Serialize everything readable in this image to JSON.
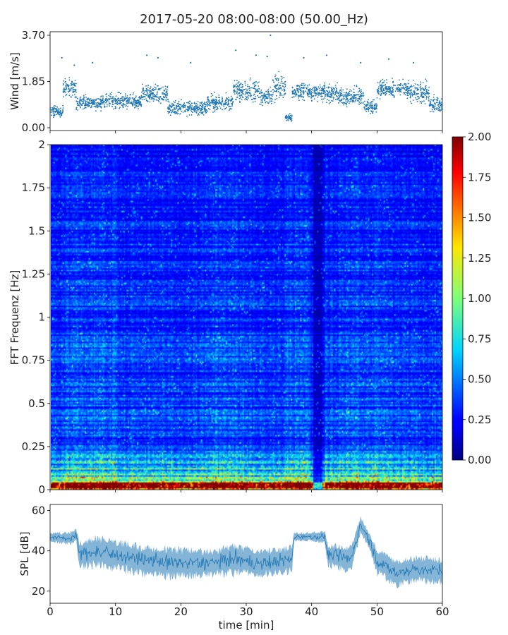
{
  "title": "2017-05-20 08:00-08:00 (50.00_Hz)",
  "chart_data": [
    {
      "type": "scatter",
      "name": "wind-panel",
      "ylabel": "Wind [m/s]",
      "ylim": [
        0,
        3.7
      ],
      "yticks": [
        "0.00",
        "1.85",
        "3.70"
      ],
      "xlim": [
        0,
        60
      ],
      "color": "#1f77b4",
      "segments": [
        {
          "x0": 0,
          "x1": 2,
          "mean": 0.65,
          "spread": 0.35
        },
        {
          "x0": 2,
          "x1": 4,
          "mean": 1.6,
          "spread": 0.6
        },
        {
          "x0": 4,
          "x1": 8,
          "mean": 1.0,
          "spread": 0.45
        },
        {
          "x0": 8,
          "x1": 14,
          "mean": 1.05,
          "spread": 0.5
        },
        {
          "x0": 14,
          "x1": 18,
          "mean": 1.35,
          "spread": 0.55
        },
        {
          "x0": 18,
          "x1": 24,
          "mean": 0.8,
          "spread": 0.5
        },
        {
          "x0": 24,
          "x1": 28,
          "mean": 1.0,
          "spread": 0.5
        },
        {
          "x0": 28,
          "x1": 32,
          "mean": 1.5,
          "spread": 0.7
        },
        {
          "x0": 32,
          "x1": 34,
          "mean": 1.2,
          "spread": 0.6
        },
        {
          "x0": 34,
          "x1": 36,
          "mean": 1.6,
          "spread": 0.8
        },
        {
          "x0": 36,
          "x1": 37,
          "mean": 0.4,
          "spread": 0.2
        },
        {
          "x0": 37,
          "x1": 40,
          "mean": 1.45,
          "spread": 0.55
        },
        {
          "x0": 40,
          "x1": 44,
          "mean": 1.4,
          "spread": 0.6
        },
        {
          "x0": 44,
          "x1": 48,
          "mean": 1.25,
          "spread": 0.55
        },
        {
          "x0": 48,
          "x1": 50,
          "mean": 0.85,
          "spread": 0.45
        },
        {
          "x0": 50,
          "x1": 55,
          "mean": 1.55,
          "spread": 0.6
        },
        {
          "x0": 55,
          "x1": 58,
          "mean": 1.4,
          "spread": 0.7
        },
        {
          "x0": 58,
          "x1": 60,
          "mean": 0.9,
          "spread": 0.5
        }
      ],
      "peaks": [
        {
          "x": 1.8,
          "y": 2.8
        },
        {
          "x": 3.7,
          "y": 2.5
        },
        {
          "x": 6.5,
          "y": 2.6
        },
        {
          "x": 14.8,
          "y": 2.9
        },
        {
          "x": 16.5,
          "y": 2.8
        },
        {
          "x": 21.5,
          "y": 2.6
        },
        {
          "x": 28.4,
          "y": 3.1
        },
        {
          "x": 31.5,
          "y": 2.9
        },
        {
          "x": 33.2,
          "y": 2.85
        },
        {
          "x": 33.7,
          "y": 3.7
        },
        {
          "x": 38.8,
          "y": 2.8
        },
        {
          "x": 42.3,
          "y": 2.9
        },
        {
          "x": 47.5,
          "y": 2.6
        },
        {
          "x": 51.8,
          "y": 2.75
        },
        {
          "x": 55.6,
          "y": 2.6
        }
      ]
    },
    {
      "type": "heatmap",
      "name": "spectrogram-panel",
      "ylabel": "FFT Frequenz [Hz]",
      "xlim": [
        0,
        60
      ],
      "ylim": [
        0,
        2
      ],
      "yticks": [
        "0",
        "0.25",
        "0.5",
        "0.75",
        "1",
        "1.25",
        "1.5",
        "1.75",
        "2"
      ],
      "colormap": "jet",
      "colorbar": {
        "range": [
          0,
          2
        ],
        "ticks": [
          "0.00",
          "0.25",
          "0.50",
          "0.75",
          "1.00",
          "1.25",
          "1.50",
          "1.75",
          "2.00"
        ]
      },
      "description_values": {
        "low_frequency_high_energy_band_hz": [
          0,
          0.2
        ],
        "quiet_column_min": [
          40,
          41.5
        ],
        "typical_level": 0.3
      }
    },
    {
      "type": "line",
      "name": "spl-panel",
      "ylabel": "SPL [dB]",
      "xlabel": "time [min]",
      "xlim": [
        0,
        60
      ],
      "ylim": [
        14,
        63
      ],
      "yticks": [
        "20",
        "40",
        "60"
      ],
      "xticks": [
        "0",
        "10",
        "20",
        "30",
        "40",
        "50",
        "60"
      ],
      "color": "#1f77b4",
      "profile": [
        {
          "x": 0,
          "y": 47,
          "noise": 2
        },
        {
          "x": 3,
          "y": 46,
          "noise": 3
        },
        {
          "x": 4,
          "y": 48,
          "noise": 3
        },
        {
          "x": 4.5,
          "y": 38,
          "noise": 6
        },
        {
          "x": 7,
          "y": 40,
          "noise": 7
        },
        {
          "x": 10,
          "y": 38,
          "noise": 7
        },
        {
          "x": 15,
          "y": 35,
          "noise": 7
        },
        {
          "x": 20,
          "y": 34,
          "noise": 7
        },
        {
          "x": 25,
          "y": 34,
          "noise": 6
        },
        {
          "x": 28,
          "y": 36,
          "noise": 7
        },
        {
          "x": 32,
          "y": 34,
          "noise": 6
        },
        {
          "x": 37,
          "y": 36,
          "noise": 6
        },
        {
          "x": 37.3,
          "y": 47,
          "noise": 2
        },
        {
          "x": 40,
          "y": 47,
          "noise": 2
        },
        {
          "x": 42,
          "y": 47,
          "noise": 3
        },
        {
          "x": 42.5,
          "y": 38,
          "noise": 5
        },
        {
          "x": 46,
          "y": 36,
          "noise": 6
        },
        {
          "x": 47.5,
          "y": 53,
          "noise": 4
        },
        {
          "x": 49,
          "y": 44,
          "noise": 4
        },
        {
          "x": 50,
          "y": 35,
          "noise": 6
        },
        {
          "x": 53,
          "y": 29,
          "noise": 6
        },
        {
          "x": 56,
          "y": 31,
          "noise": 6
        },
        {
          "x": 60,
          "y": 30,
          "noise": 6
        }
      ]
    }
  ]
}
